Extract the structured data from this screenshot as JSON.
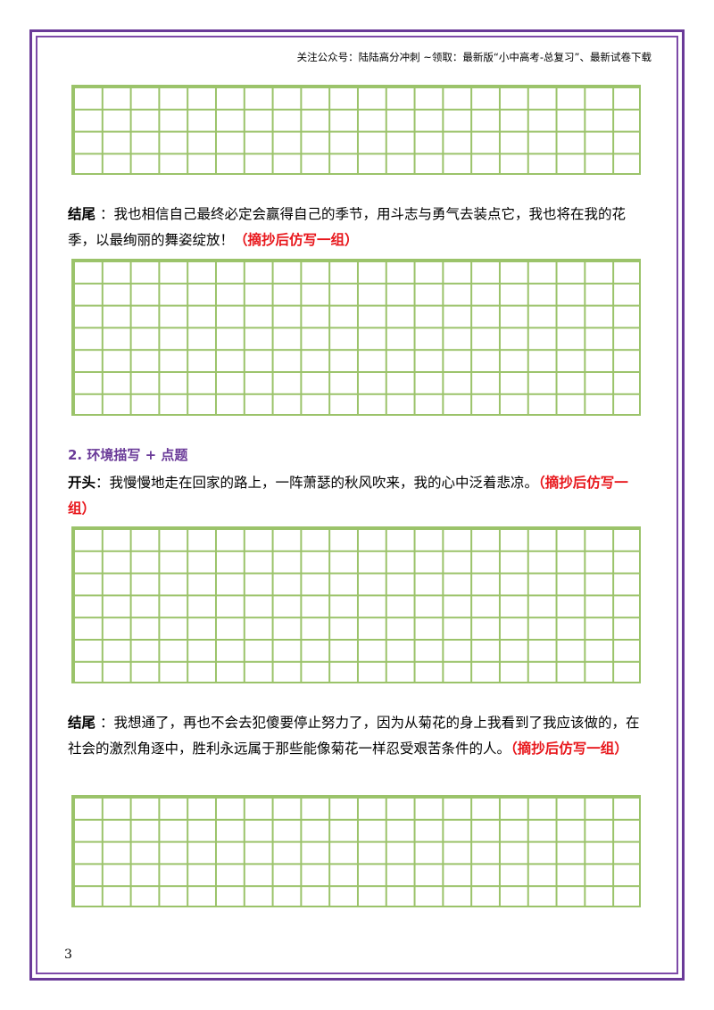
{
  "header": {
    "text": "关注公众号：陆陆高分冲刺 ~领取：最新版“小中高考-总复习”、最新试卷下载"
  },
  "blocks": {
    "ending1": {
      "label": "结尾",
      "sep": " ：",
      "body": "我也相信自己最终必定会赢得自己的季节，用斗志与勇气去装点它，我也将在我的花季，以最绚丽的舞姿绽放！",
      "note": "（摘抄后仿写一组）"
    },
    "section2": {
      "title": "2. 环境描写 + 点题"
    },
    "opening2": {
      "label": "开头",
      "sep": "：",
      "body": "我慢慢地走在回家的路上，一阵萧瑟的秋风吹来，我的心中泛着悲凉。",
      "note": "（摘抄后仿写一组）"
    },
    "ending2": {
      "label": "结尾",
      "sep": " ：",
      "body": "我想通了，再也不会去犯傻要停止努力了，因为从菊花的身上我看到了我应该做的，在社会的激烈角逐中，胜利永远属于那些能像菊花一样忍受艰苦条件的人。",
      "note": "（摘抄后仿写一组）"
    }
  },
  "page_number": "3",
  "colors": {
    "border": "#6a3a98",
    "grid": "#9bc36a",
    "note": "#e8161b",
    "section": "#6a3a98"
  }
}
